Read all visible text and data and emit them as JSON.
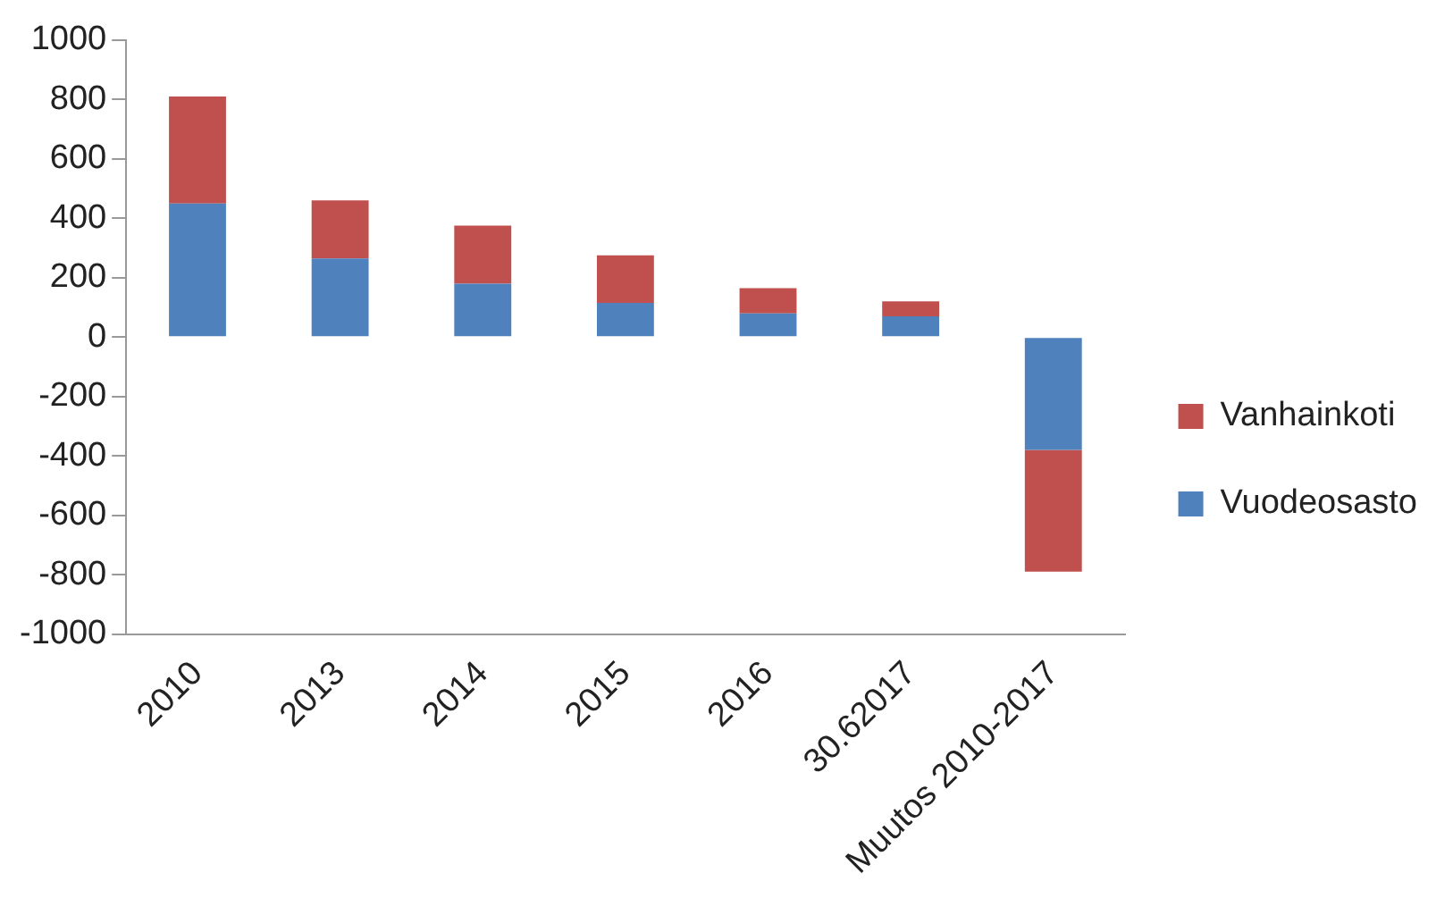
{
  "chart_data": {
    "type": "bar",
    "stacked": true,
    "categories": [
      "2010",
      "2013",
      "2014",
      "2015",
      "2016",
      "30.62017",
      "Muutos 2010-2017"
    ],
    "series": [
      {
        "name": "Vuodeosasto",
        "color": "#4f81bd",
        "values": [
          450,
          265,
          180,
          115,
          80,
          70,
          -380
        ]
      },
      {
        "name": "Vanhainkoti",
        "color": "#c0504d",
        "values": [
          360,
          195,
          195,
          160,
          85,
          50,
          -410
        ]
      }
    ],
    "ylim": [
      -1000,
      1000
    ],
    "yticks": [
      -1000,
      -800,
      -600,
      -400,
      -200,
      0,
      200,
      400,
      600,
      800,
      1000
    ],
    "grid": false,
    "legend": "right"
  }
}
